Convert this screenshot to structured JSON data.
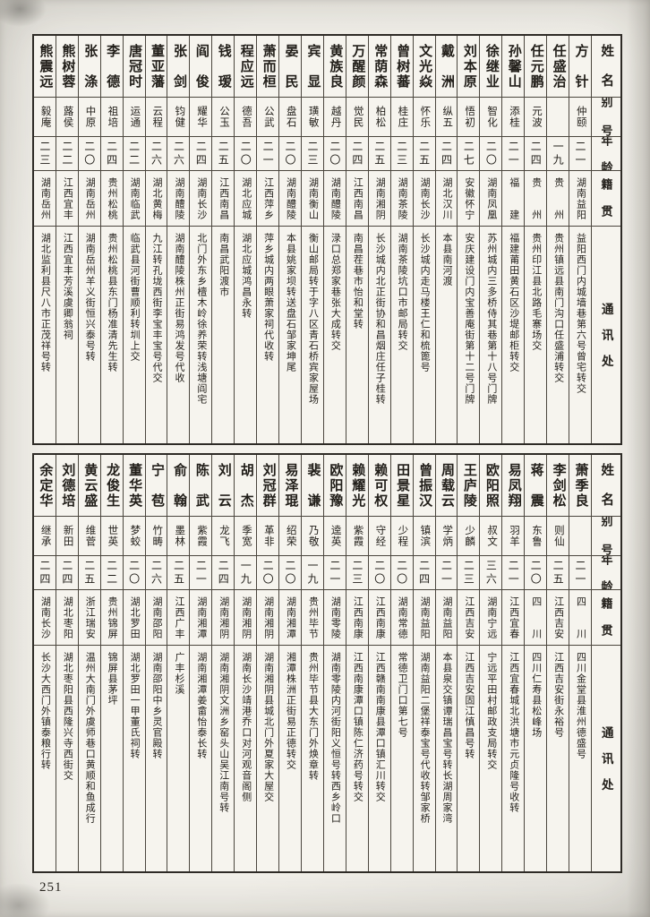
{
  "page_number": "251",
  "headers": {
    "name": "姓　名",
    "alias": "别 号",
    "age": "年 龄",
    "origin": "籍　贯",
    "address": "通　讯　处"
  },
  "tables": [
    {
      "persons": [
        {
          "name": "方　针",
          "alias": "仲颐",
          "age": "二一",
          "origin": "湖南益阳",
          "address": "益阳西门内城墙巷第六号曾宅转交"
        },
        {
          "name": "任盛治",
          "alias": "",
          "age": "一九",
          "origin": "贵　　州",
          "address": "贵州镇远县南门沟口任盛浦转交"
        },
        {
          "name": "任元鹏",
          "alias": "元波",
          "age": "二四",
          "origin": "贵　　州",
          "address": "贵州印江县北路毛寨场交"
        },
        {
          "name": "孙馨山",
          "alias": "添桂",
          "age": "二一",
          "origin": "福　　建",
          "address": "福建莆田黄石区沙堤邮柜转交"
        },
        {
          "name": "徐继业",
          "alias": "智化",
          "age": "二〇",
          "origin": "湖南凤凰",
          "address": "苏州城内三多桥侍其巷第十八号门牌"
        },
        {
          "name": "刘本原",
          "alias": "悟初",
          "age": "二七",
          "origin": "安徽怀宁",
          "address": "安庆建设门内宝善庵街第十二号门牌"
        },
        {
          "name": "戴　洲",
          "alias": "纵五",
          "age": "二四",
          "origin": "湖北汉川",
          "address": "本县南河渡"
        },
        {
          "name": "文光焱",
          "alias": "怀乐",
          "age": "二五",
          "origin": "湖南长沙",
          "address": "长沙城内走马楼王仁和梳篦号"
        },
        {
          "name": "曾树蕃",
          "alias": "桂庄",
          "age": "二三",
          "origin": "湖南茶陵",
          "address": "湖南茶陵坑口市邮局转交"
        },
        {
          "name": "常荫森",
          "alias": "柏松",
          "age": "二五",
          "origin": "湖南湘阴",
          "address": "长沙城内北正街协和昌烟庄任子桂转"
        },
        {
          "name": "万醒颜",
          "alias": "觉民",
          "age": "二四",
          "origin": "江西南昌",
          "address": "南昌茬巷市怡和堂转"
        },
        {
          "name": "黄族良",
          "alias": "越丹",
          "age": "二〇",
          "origin": "湖南醴陵",
          "address": "渌口总郑家巷张大成转交"
        },
        {
          "name": "宾　显",
          "alias": "璜敏",
          "age": "二三",
          "origin": "湖南衡山",
          "address": "衡山邮局转于字八区青石桥宾家屋场"
        },
        {
          "name": "晏　民",
          "alias": "盘石",
          "age": "二〇",
          "origin": "湖南醴陵",
          "address": "本县姚家坝转送盘石邹家坤尾"
        },
        {
          "name": "萧而桓",
          "alias": "公武",
          "age": "二一",
          "origin": "江西萍乡",
          "address": "萍乡城内两眼萧家祠代收转"
        },
        {
          "name": "程应远",
          "alias": "德吾",
          "age": "二〇",
          "origin": "湖北应城",
          "address": "湖北应城鸿昌永转"
        },
        {
          "name": "钱　瑷",
          "alias": "公玉",
          "age": "二五",
          "origin": "江西南昌",
          "address": "南昌武阳渡市"
        },
        {
          "name": "阎　俊",
          "alias": "耀华",
          "age": "二四",
          "origin": "湖南长沙",
          "address": "北门外东乡檀木岭徐养荣转浅塘阎宅"
        },
        {
          "name": "张　剑",
          "alias": "钧健",
          "age": "二六",
          "origin": "湖南醴陵",
          "address": "湖南醴陵株州正街易鸿发号代收"
        },
        {
          "name": "董亚藩",
          "alias": "云程",
          "age": "二六",
          "origin": "湖北黄梅",
          "address": "九江转孔垅西街李宝丰宝号代交"
        },
        {
          "name": "唐冠时",
          "alias": "运通",
          "age": "二二",
          "origin": "湖南临武",
          "address": "临武县河街曹顺利转圳上交"
        },
        {
          "name": "李　德",
          "alias": "祖培",
          "age": "二四",
          "origin": "贵州松桃",
          "address": "贵州松桃县东门杨准清先生转"
        },
        {
          "name": "张　涤",
          "alias": "中原",
          "age": "二〇",
          "origin": "湖南岳州",
          "address": "湖南岳州羊义街恒兴泰号转"
        },
        {
          "name": "熊树蓉",
          "alias": "蕗侯",
          "age": "二二",
          "origin": "江西宜丰",
          "address": "江西宜丰芳溪虞卿翁祠"
        },
        {
          "name": "熊震远",
          "alias": "毅庵",
          "age": "二三",
          "origin": "湖南岳州",
          "address": "湖北监利县尺八市正茂祥号转"
        }
      ]
    },
    {
      "persons": [
        {
          "name": "萧季良",
          "alias": "",
          "age": "二一",
          "origin": "四　　川",
          "address": "四川金堂县淮州德盛号"
        },
        {
          "name": "李剑松",
          "alias": "则仙",
          "age": "二五",
          "origin": "江西吉安",
          "address": "江西吉安街永裕号"
        },
        {
          "name": "蒋　震",
          "alias": "东鲁",
          "age": "二〇",
          "origin": "四　　川",
          "address": "四川仁寿县松峰场"
        },
        {
          "name": "易凤翔",
          "alias": "羽羊",
          "age": "二一",
          "origin": "江西宜春",
          "address": "江西宜春城北洪塘市元贞隆号收转"
        },
        {
          "name": "欧阳照",
          "alias": "叔文",
          "age": "三六",
          "origin": "湖南宁远",
          "address": "宁远平田村邮政支局转交"
        },
        {
          "name": "王庐陵",
          "alias": "少麟",
          "age": "二三",
          "origin": "江西吉安",
          "address": "江西吉安固江慎昌号转"
        },
        {
          "name": "周载云",
          "alias": "学炳",
          "age": "二一",
          "origin": "湖南益阳",
          "address": "本县泉交镇谭瑞昌宝号转长湖周家湾"
        },
        {
          "name": "曾振汉",
          "alias": "镇滨",
          "age": "二四",
          "origin": "湖南益阳",
          "address": "湖南益阳二堡祥泰宝号代收转邹家桥"
        },
        {
          "name": "田景星",
          "alias": "少程",
          "age": "二〇",
          "origin": "湖南常德",
          "address": "常德卫门口第七号"
        },
        {
          "name": "赖可权",
          "alias": "守经",
          "age": "二〇",
          "origin": "江西南康",
          "address": "江西赣南南康县潭口镇汇川转交"
        },
        {
          "name": "赖耀光",
          "alias": "紫霞",
          "age": "二三",
          "origin": "江西南康",
          "address": "江西南康潭口镇陈仁济药号转交"
        },
        {
          "name": "欧阳豫",
          "alias": "逵英",
          "age": "二一",
          "origin": "湖南零陵",
          "address": "湖南零陵内河街阳义恒号转西乡岭口"
        },
        {
          "name": "裴　谦",
          "alias": "乃敬",
          "age": "一九",
          "origin": "贵州毕节",
          "address": "贵州毕节县大东门外焕章转"
        },
        {
          "name": "易泽琨",
          "alias": "绍荣",
          "age": "二〇",
          "origin": "湖南湘潭",
          "address": "湘潭株洲正街易正德转交"
        },
        {
          "name": "刘冠群",
          "alias": "革非",
          "age": "二〇",
          "origin": "湖南湘阴",
          "address": "湖南湘阴县城北门外夏家大屋交"
        },
        {
          "name": "胡　杰",
          "alias": "季宽",
          "age": "一九",
          "origin": "湖南湘阴",
          "address": "湖南长沙靖港乔口对河观音阁侧"
        },
        {
          "name": "刘　云",
          "alias": "龙飞",
          "age": "二四",
          "origin": "湖南湘阴",
          "address": "湖南湘阴文洲乡窑头山吴江南号转"
        },
        {
          "name": "陈　武",
          "alias": "紫霞",
          "age": "二一",
          "origin": "湖南湘潭",
          "address": "湖南湘潭姜畲怡泰长转"
        },
        {
          "name": "俞　翰",
          "alias": "墨林",
          "age": "二五",
          "origin": "江西广丰",
          "address": "广丰杉溪"
        },
        {
          "name": "宁　苞",
          "alias": "竹畴",
          "age": "二六",
          "origin": "湖南邵阳",
          "address": "湖南邵阳中乡灵官殿转"
        },
        {
          "name": "董华英",
          "alias": "梦蛟",
          "age": "二〇",
          "origin": "湖北罗田",
          "address": "湖北罗田一甲董氏祠转"
        },
        {
          "name": "龙俊生",
          "alias": "世英",
          "age": "二二",
          "origin": "贵州锦屏",
          "address": "锦屏县茅坪"
        },
        {
          "name": "黄云盛",
          "alias": "维菅",
          "age": "二五",
          "origin": "浙江瑞安",
          "address": "温州大南门外虞师巷口黄顺和鱼成行"
        },
        {
          "name": "刘德培",
          "alias": "新田",
          "age": "二四",
          "origin": "湖北枣阳",
          "address": "湖北枣阳县西隆兴寺西街交"
        },
        {
          "name": "余定华",
          "alias": "继承",
          "age": "二四",
          "origin": "湖南长沙",
          "address": "长沙大西门外镇泰粮行转"
        }
      ]
    }
  ]
}
